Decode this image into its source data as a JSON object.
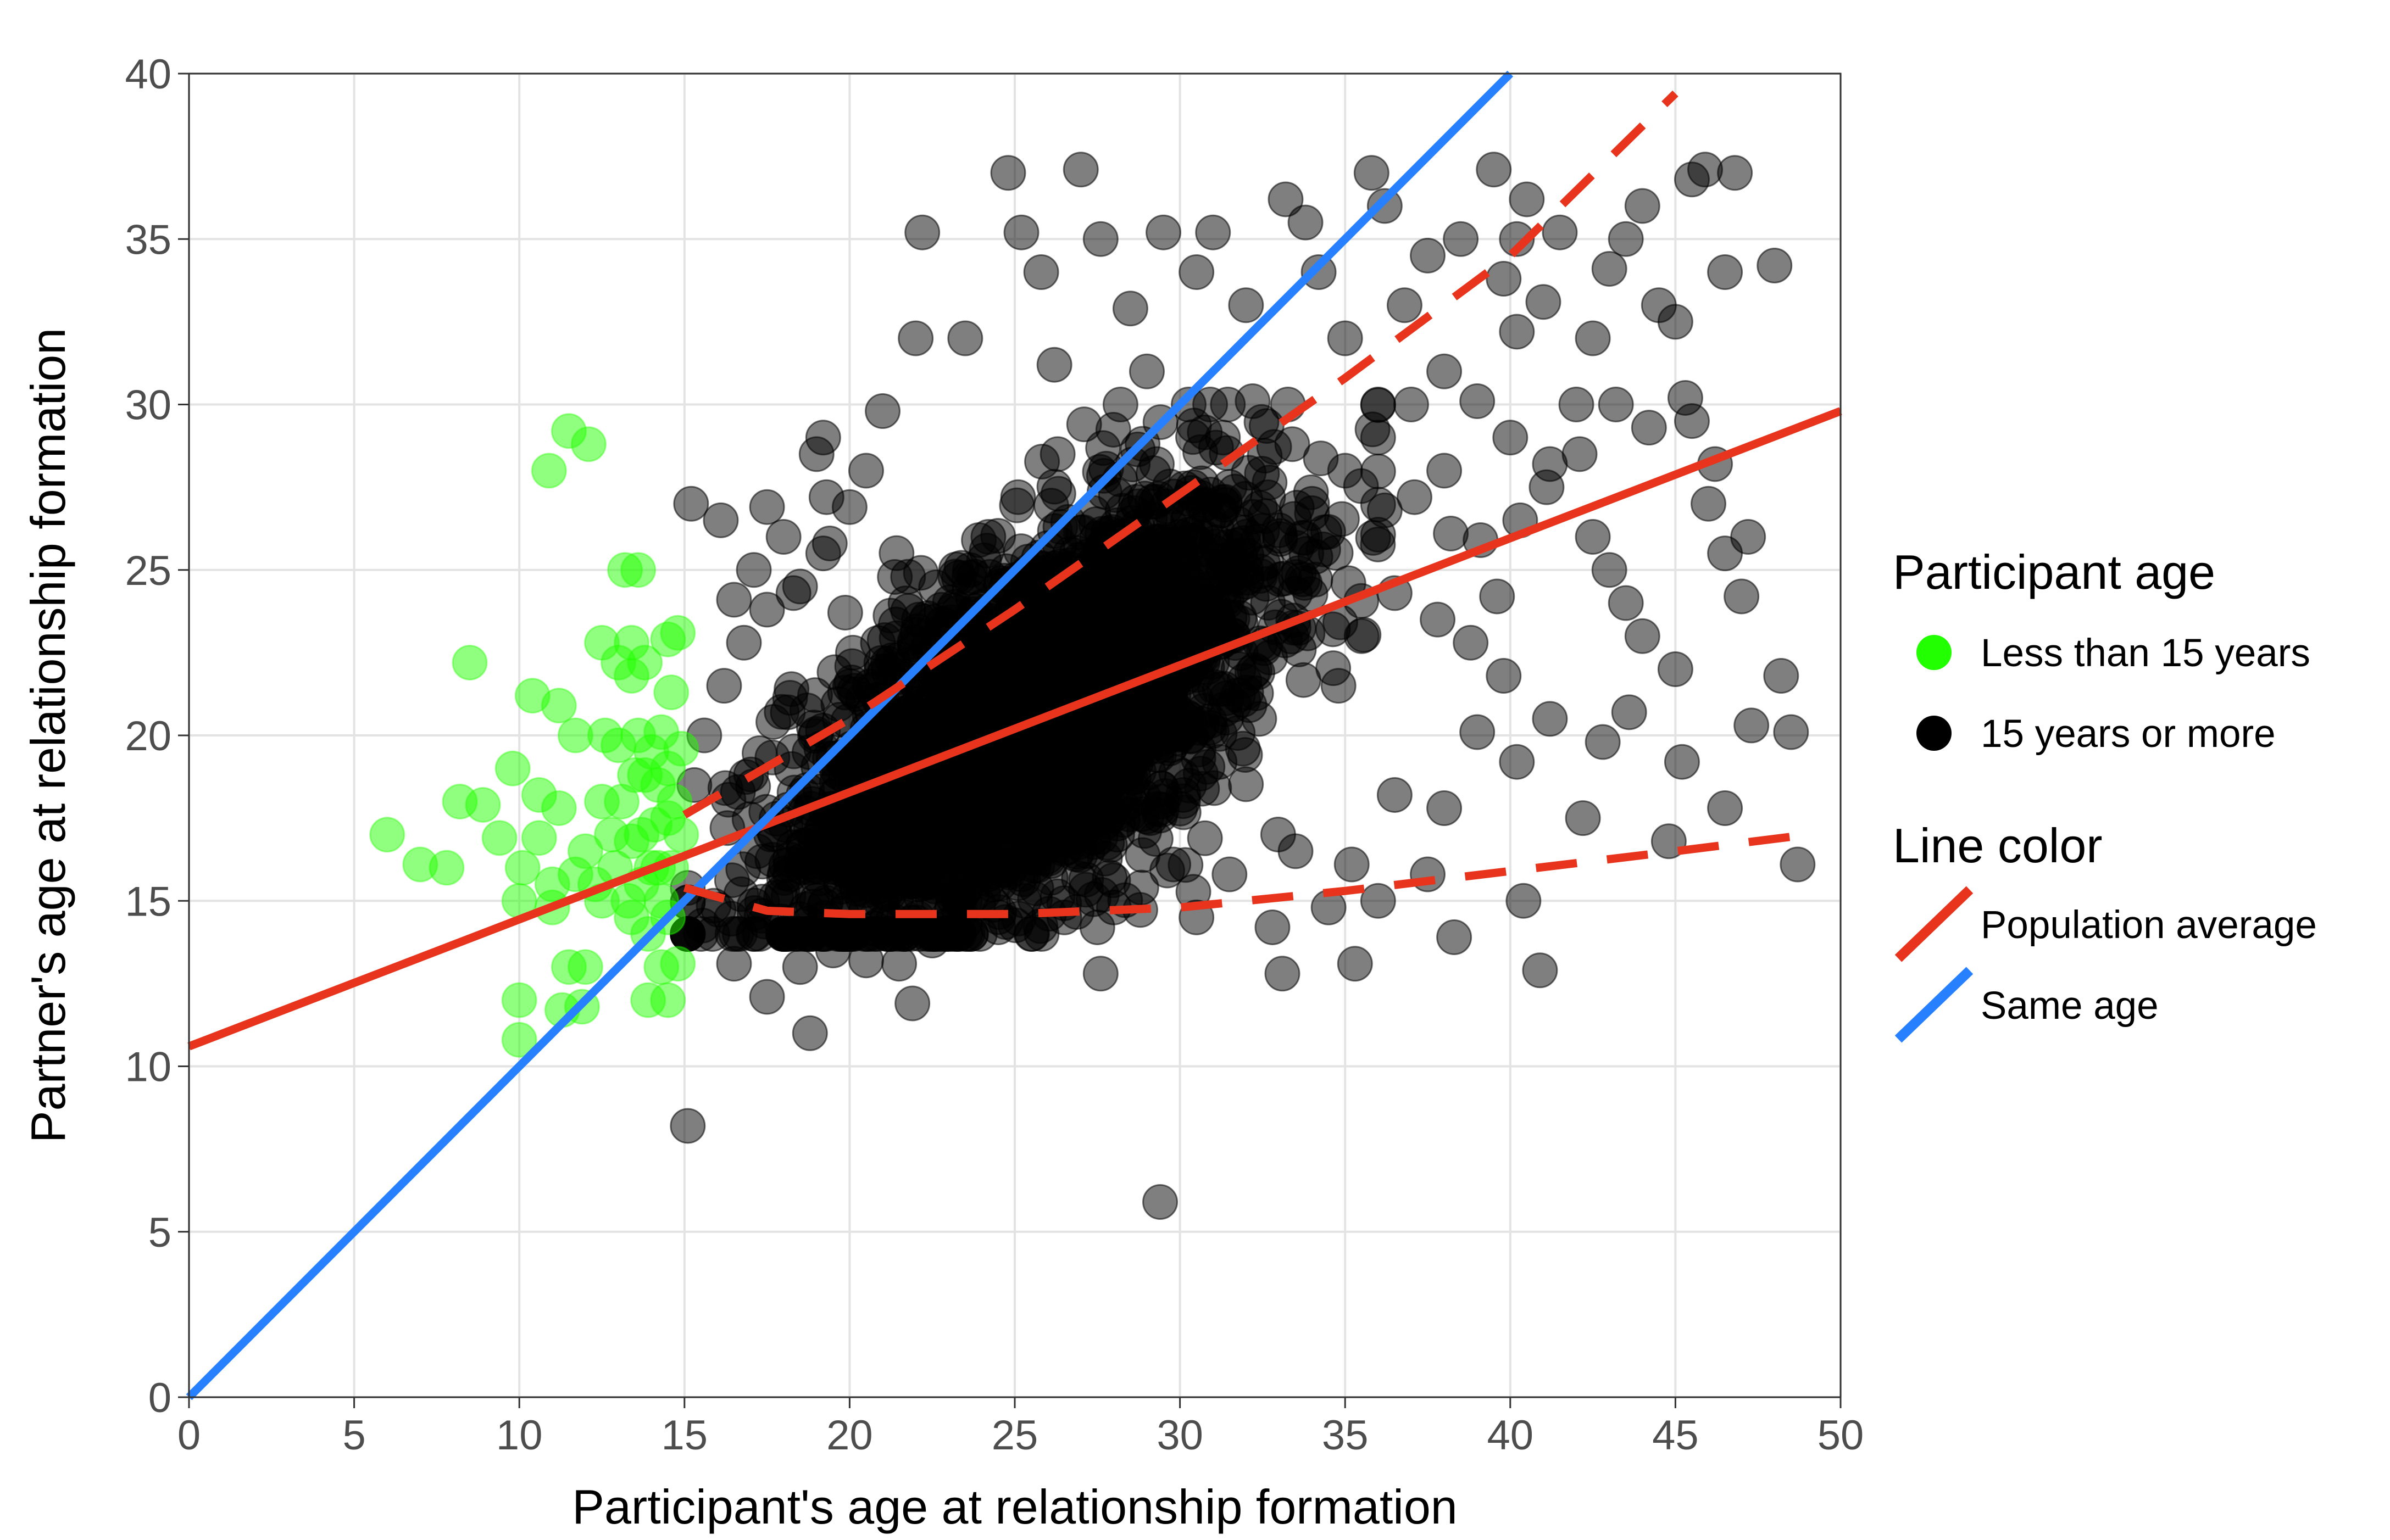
{
  "chart_data": {
    "type": "scatter",
    "title": "",
    "xlabel": "Participant's age at relationship formation",
    "ylabel": "Partner's age at relationship formation",
    "xlim": [
      0,
      50
    ],
    "ylim": [
      0,
      40
    ],
    "x_ticks": [
      "0",
      "5",
      "10",
      "15",
      "20",
      "25",
      "30",
      "35",
      "40",
      "45",
      "50"
    ],
    "y_ticks": [
      "0",
      "5",
      "10",
      "15",
      "20",
      "25",
      "30",
      "35",
      "40"
    ],
    "grid": true,
    "legend_position": "right",
    "legends": [
      {
        "title": "Participant age",
        "entries": [
          {
            "label": "Less than 15 years",
            "color": "#22ff00",
            "symbol": "circle"
          },
          {
            "label": "15 years or more",
            "color": "#000000",
            "symbol": "circle"
          }
        ]
      },
      {
        "title": "Line color",
        "entries": [
          {
            "label": "Population average",
            "color": "#e8341c",
            "symbol": "line"
          },
          {
            "label": "Same age",
            "color": "#2680ff",
            "symbol": "line"
          }
        ]
      }
    ],
    "series": [
      {
        "name": "Less than 15 years",
        "color": "#22ff00",
        "opacity": 0.5,
        "points": [
          [
            6,
            17
          ],
          [
            7,
            16.1
          ],
          [
            7.8,
            16
          ],
          [
            8.2,
            18
          ],
          [
            8.5,
            22.2
          ],
          [
            8.9,
            17.9
          ],
          [
            9.4,
            16.9
          ],
          [
            9.8,
            19
          ],
          [
            10,
            15
          ],
          [
            10,
            12
          ],
          [
            10,
            10.8
          ],
          [
            10.1,
            16
          ],
          [
            10.4,
            21.2
          ],
          [
            10.6,
            18.2
          ],
          [
            10.6,
            16.9
          ],
          [
            10.9,
            28
          ],
          [
            11,
            15.5
          ],
          [
            11,
            14.8
          ],
          [
            11.2,
            20.9
          ],
          [
            11.2,
            17.8
          ],
          [
            11.3,
            11.7
          ],
          [
            11.5,
            29.2
          ],
          [
            11.5,
            13
          ],
          [
            11.7,
            15.8
          ],
          [
            11.7,
            20
          ],
          [
            11.9,
            11.8
          ],
          [
            12,
            16.5
          ],
          [
            12,
            13
          ],
          [
            12.1,
            28.8
          ],
          [
            12.3,
            15.5
          ],
          [
            12.5,
            22.8
          ],
          [
            12.5,
            18
          ],
          [
            12.5,
            15
          ],
          [
            12.6,
            20
          ],
          [
            12.8,
            17
          ],
          [
            12.9,
            16
          ],
          [
            13,
            22.2
          ],
          [
            13,
            19.7
          ],
          [
            13.1,
            18
          ],
          [
            13.2,
            25
          ],
          [
            13.3,
            15
          ],
          [
            13.4,
            22.8
          ],
          [
            13.4,
            21.8
          ],
          [
            13.4,
            16.8
          ],
          [
            13.4,
            14.5
          ],
          [
            13.5,
            18.8
          ],
          [
            13.6,
            25
          ],
          [
            13.6,
            20
          ],
          [
            13.7,
            17
          ],
          [
            13.7,
            15.5
          ],
          [
            13.8,
            22.2
          ],
          [
            13.8,
            18.8
          ],
          [
            13.9,
            14
          ],
          [
            13.9,
            12
          ],
          [
            14,
            16
          ],
          [
            14,
            19.5
          ],
          [
            14.1,
            17.3
          ],
          [
            14.2,
            18.5
          ],
          [
            14.2,
            16
          ],
          [
            14.3,
            20.1
          ],
          [
            14.3,
            15
          ],
          [
            14.3,
            13
          ],
          [
            14.5,
            22.9
          ],
          [
            14.5,
            17.5
          ],
          [
            14.5,
            19
          ],
          [
            14.5,
            12
          ],
          [
            14.5,
            14.5
          ],
          [
            14.6,
            16
          ],
          [
            14.6,
            21.3
          ],
          [
            14.7,
            18
          ],
          [
            14.8,
            13.1
          ],
          [
            14.8,
            23.1
          ],
          [
            14.9,
            17
          ],
          [
            14.9,
            19.6
          ]
        ]
      },
      {
        "name": "15 years or more",
        "color": "#000000",
        "opacity": 0.5,
        "points": [
          [
            15.1,
            8.2
          ],
          [
            29.4,
            5.9
          ],
          [
            18.8,
            11
          ],
          [
            21.9,
            11.9
          ],
          [
            40.9,
            12.9
          ],
          [
            33.1,
            12.8
          ],
          [
            35.3,
            13.1
          ],
          [
            38.3,
            13.9
          ],
          [
            27.6,
            12.8
          ],
          [
            15.2,
            27
          ],
          [
            16.1,
            26.5
          ],
          [
            16.5,
            24.1
          ],
          [
            17.1,
            25
          ],
          [
            17.5,
            26.9
          ],
          [
            18,
            26
          ],
          [
            18.5,
            24.5
          ],
          [
            19,
            28.5
          ],
          [
            19.3,
            27.2
          ],
          [
            19.2,
            29
          ],
          [
            19.4,
            25.8
          ],
          [
            20,
            26.9
          ],
          [
            20.5,
            28
          ],
          [
            21,
            29.8
          ],
          [
            22,
            32
          ],
          [
            22.2,
            35.2
          ],
          [
            23.5,
            32
          ],
          [
            24.8,
            37
          ],
          [
            25.2,
            35.2
          ],
          [
            25.8,
            34
          ],
          [
            26.2,
            31.2
          ],
          [
            27,
            37.1
          ],
          [
            27.6,
            35
          ],
          [
            28.5,
            32.9
          ],
          [
            29,
            31
          ],
          [
            29.5,
            35.2
          ],
          [
            30.5,
            34
          ],
          [
            31,
            35.2
          ],
          [
            32,
            33
          ],
          [
            33.2,
            36.2
          ],
          [
            33.8,
            35.5
          ],
          [
            34.2,
            34
          ],
          [
            35,
            32
          ],
          [
            35.8,
            37
          ],
          [
            36.2,
            36
          ],
          [
            36.8,
            33
          ],
          [
            37.5,
            34.5
          ],
          [
            38,
            31
          ],
          [
            38.5,
            35
          ],
          [
            39.5,
            37.1
          ],
          [
            39.8,
            33.8
          ],
          [
            40.2,
            32.2
          ],
          [
            40.5,
            36.2
          ],
          [
            40.2,
            35
          ],
          [
            41,
            33.1
          ],
          [
            41.5,
            35.2
          ],
          [
            42,
            30
          ],
          [
            42.5,
            32
          ],
          [
            43,
            34.1
          ],
          [
            43.5,
            35
          ],
          [
            44,
            36
          ],
          [
            44.5,
            33
          ],
          [
            45,
            32.5
          ],
          [
            45.5,
            36.8
          ],
          [
            45.9,
            37.1
          ],
          [
            46.5,
            34
          ],
          [
            46.8,
            37
          ],
          [
            48,
            34.2
          ],
          [
            41.2,
            28.2
          ],
          [
            42.5,
            26
          ],
          [
            43,
            25
          ],
          [
            43.5,
            24
          ],
          [
            44,
            23
          ],
          [
            45,
            22
          ],
          [
            45.5,
            29.5
          ],
          [
            46,
            27
          ],
          [
            46.5,
            25.5
          ],
          [
            47,
            24.2
          ],
          [
            47.3,
            20.3
          ],
          [
            48.2,
            21.8
          ],
          [
            48.5,
            20.1
          ],
          [
            48.7,
            16.1
          ],
          [
            44.8,
            16.8
          ],
          [
            46.5,
            17.8
          ],
          [
            45.2,
            19.2
          ],
          [
            42.2,
            17.5
          ],
          [
            42.8,
            19.8
          ],
          [
            43.6,
            20.7
          ],
          [
            40.2,
            19.2
          ],
          [
            40.4,
            15
          ],
          [
            41.2,
            20.5
          ],
          [
            39.8,
            21.8
          ],
          [
            39,
            20.1
          ],
          [
            38,
            17.8
          ],
          [
            37.5,
            15.8
          ],
          [
            36.5,
            18.2
          ],
          [
            36,
            15
          ],
          [
            35.2,
            16.1
          ],
          [
            34.5,
            14.8
          ],
          [
            33.5,
            16.5
          ],
          [
            32.8,
            14.2
          ],
          [
            31.5,
            15.8
          ],
          [
            30.5,
            14.5
          ],
          [
            29.8,
            16.1
          ],
          [
            28,
            14.8
          ],
          [
            27.5,
            14.2
          ],
          [
            26.5,
            14.5
          ],
          [
            25.5,
            14
          ],
          [
            24.5,
            14.2
          ],
          [
            23.5,
            14
          ],
          [
            22.5,
            13.8
          ],
          [
            21.5,
            13.1
          ],
          [
            20.5,
            13.2
          ],
          [
            19.5,
            13.5
          ],
          [
            18.5,
            13
          ],
          [
            17.5,
            12.1
          ],
          [
            16.5,
            13.1
          ],
          [
            15.5,
            14
          ],
          [
            22,
            17
          ],
          [
            23,
            19
          ],
          [
            24,
            20
          ],
          [
            25,
            21
          ],
          [
            26,
            22
          ],
          [
            27,
            23
          ],
          [
            28,
            24
          ],
          [
            29,
            25
          ],
          [
            30,
            26
          ],
          [
            31,
            24
          ],
          [
            32,
            25
          ],
          [
            33,
            26.2
          ],
          [
            34,
            27
          ],
          [
            35,
            28
          ],
          [
            36,
            29
          ],
          [
            37,
            30
          ],
          [
            38,
            28
          ],
          [
            39,
            30.1
          ],
          [
            40,
            29
          ],
          [
            36.5,
            24.3
          ],
          [
            37.8,
            23.5
          ],
          [
            38.8,
            22.8
          ],
          [
            39.6,
            24.2
          ],
          [
            35.5,
            23
          ],
          [
            34.8,
            21.5
          ],
          [
            33.6,
            22.6
          ],
          [
            32.4,
            20.5
          ],
          [
            31.2,
            19.2
          ],
          [
            30.1,
            18.2
          ],
          [
            29.1,
            17.5
          ],
          [
            28.1,
            17
          ],
          [
            27.2,
            16.5
          ],
          [
            26.1,
            16.2
          ],
          [
            25.2,
            15.8
          ],
          [
            24.1,
            16.5
          ],
          [
            23.2,
            15.2
          ],
          [
            22.1,
            15.5
          ],
          [
            21.2,
            16
          ],
          [
            20.2,
            15.5
          ],
          [
            19.1,
            16.2
          ],
          [
            18.2,
            15.8
          ],
          [
            17.2,
            16.5
          ],
          [
            16.3,
            17.2
          ],
          [
            15.3,
            18.5
          ],
          [
            15.6,
            20
          ],
          [
            16.2,
            21.5
          ],
          [
            16.8,
            22.8
          ],
          [
            17.5,
            23.8
          ],
          [
            18.3,
            24.3
          ],
          [
            19.2,
            25.5
          ],
          [
            20.1,
            22.5
          ],
          [
            21,
            21
          ],
          [
            22.1,
            23.5
          ],
          [
            23.2,
            24.8
          ],
          [
            24.2,
            26
          ],
          [
            25.1,
            27.2
          ],
          [
            26.3,
            28.5
          ],
          [
            27.1,
            29.4
          ],
          [
            28.2,
            30
          ],
          [
            29.3,
            28.2
          ],
          [
            30.4,
            27.5
          ],
          [
            31.3,
            29
          ],
          [
            32.2,
            30.1
          ],
          [
            33.4,
            28.8
          ],
          [
            34.1,
            25.4
          ],
          [
            35.1,
            24.6
          ],
          [
            36.2,
            26.8
          ],
          [
            37.1,
            27.2
          ],
          [
            38.2,
            26.1
          ],
          [
            39.1,
            25.9
          ],
          [
            40.3,
            26.5
          ],
          [
            41.1,
            27.5
          ],
          [
            42.1,
            28.5
          ],
          [
            43.2,
            30
          ],
          [
            44.2,
            29.3
          ],
          [
            45.3,
            30.2
          ],
          [
            46.2,
            28.2
          ],
          [
            47.2,
            26
          ]
        ]
      }
    ],
    "dense_cloud": {
      "center": [
        25.5,
        20.5
      ],
      "sd_x": 3.6,
      "sd_y": 3.3,
      "rho": 0.6,
      "count": 2600
    },
    "lines": [
      {
        "name": "Population average",
        "color": "#e8341c",
        "style": "solid",
        "points": [
          [
            0,
            10.6
          ],
          [
            50,
            29.8
          ]
        ]
      },
      {
        "name": "Same age",
        "color": "#2680ff",
        "style": "solid",
        "points": [
          [
            0,
            0
          ],
          [
            40,
            40
          ]
        ]
      },
      {
        "name": "Population average upper bound",
        "color": "#e8341c",
        "style": "dashed",
        "points": [
          [
            15,
            17.6
          ],
          [
            20,
            20.5
          ],
          [
            25,
            23.8
          ],
          [
            30,
            27.3
          ],
          [
            35,
            30.8
          ],
          [
            40,
            34.5
          ],
          [
            45,
            39.4
          ]
        ]
      },
      {
        "name": "Population average lower bound",
        "color": "#e8341c",
        "style": "dashed",
        "points": [
          [
            15,
            15.4
          ],
          [
            17.5,
            14.7
          ],
          [
            20,
            14.6
          ],
          [
            25,
            14.6
          ],
          [
            30,
            14.8
          ],
          [
            35,
            15.3
          ],
          [
            40,
            15.9
          ],
          [
            45,
            16.5
          ],
          [
            49,
            17
          ]
        ]
      }
    ]
  }
}
